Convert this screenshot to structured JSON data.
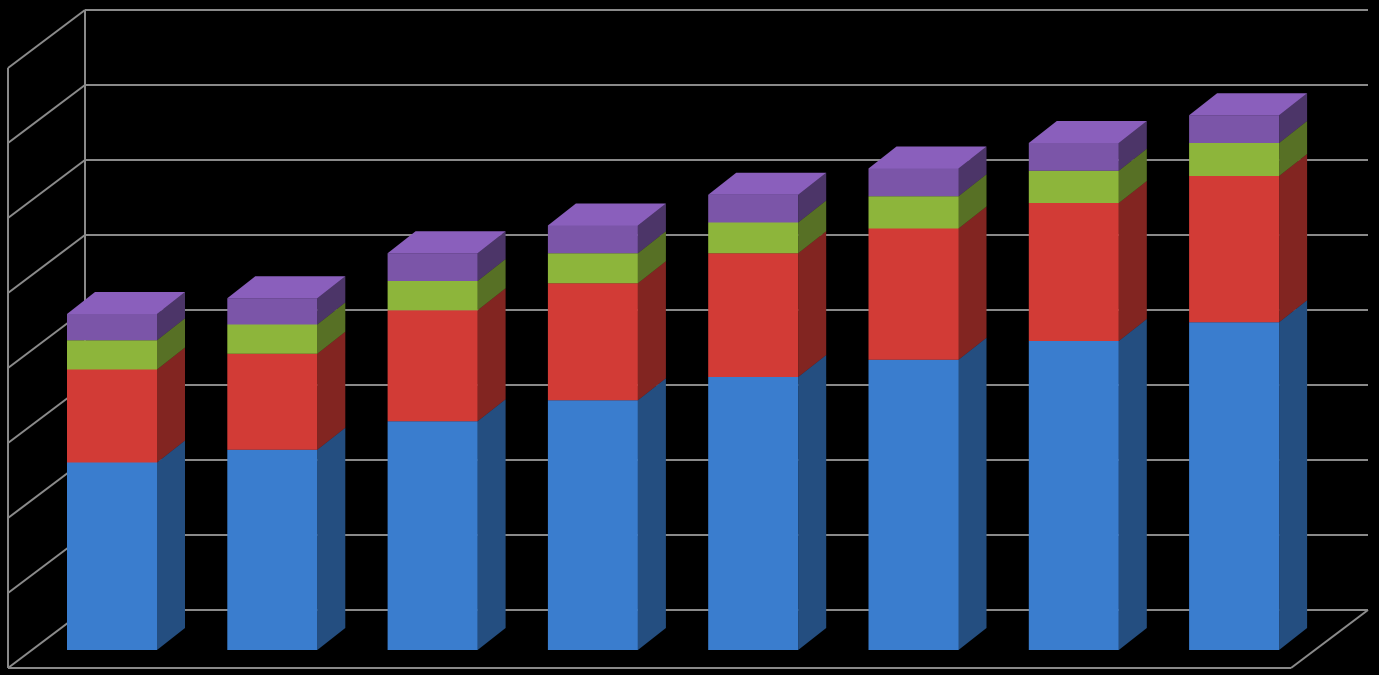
{
  "chart_data": {
    "type": "bar3d_stacked",
    "categories": [
      null,
      null,
      null,
      null,
      null,
      null,
      null,
      null
    ],
    "series": [
      {
        "color": "#3a7dce",
        "values": [
          2.5,
          2.67,
          3.05,
          3.33,
          3.64,
          3.87,
          4.12,
          4.37
        ]
      },
      {
        "color": "#d23b36",
        "values": [
          1.24,
          1.28,
          1.48,
          1.56,
          1.65,
          1.75,
          1.84,
          1.95
        ]
      },
      {
        "color": "#8db53b",
        "values": [
          0.39,
          0.39,
          0.39,
          0.4,
          0.41,
          0.43,
          0.43,
          0.44
        ]
      },
      {
        "color": "#7b55a8",
        "values": [
          0.35,
          0.35,
          0.37,
          0.37,
          0.37,
          0.37,
          0.37,
          0.37
        ]
      }
    ],
    "ylim": [
      0,
      8
    ],
    "yticks": [
      0,
      1,
      2,
      3,
      4,
      5,
      6,
      7,
      8
    ],
    "grid": true
  }
}
